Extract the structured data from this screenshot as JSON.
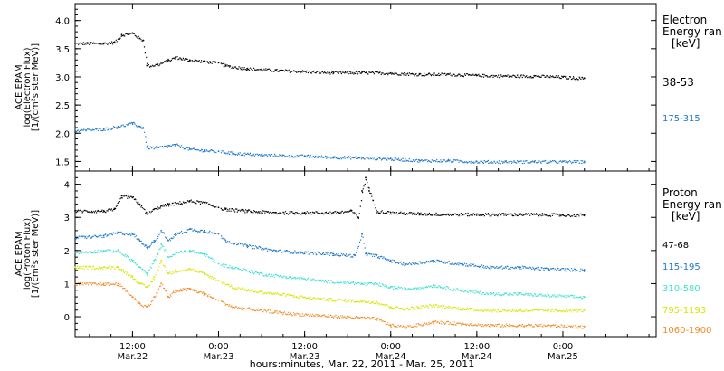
{
  "xaxis": {
    "caption": "hours:minutes, Mar. 22, 2011 - Mar. 25, 2011",
    "ticks": [
      {
        "hours": 12,
        "time": "12:00",
        "date": "Mar.22"
      },
      {
        "hours": 24,
        "time": "0:00",
        "date": "Mar.23"
      },
      {
        "hours": 36,
        "time": "12:00",
        "date": "Mar.23"
      },
      {
        "hours": 48,
        "time": "0:00",
        "date": "Mar.24"
      },
      {
        "hours": 60,
        "time": "12:00",
        "date": "Mar.24"
      },
      {
        "hours": 72,
        "time": "0:00",
        "date": "Mar.25"
      }
    ]
  },
  "chart_data": [
    {
      "type": "scatter",
      "ylabel": [
        "ACE EPAM",
        "log(Electron Flux)",
        "[1/(cm²s ster MeV)]"
      ],
      "ylim": [
        1.33,
        4.3
      ],
      "yticks": [
        "1.5",
        "2.0",
        "2.5",
        "3.0",
        "3.5",
        "4.0"
      ],
      "legend_title": [
        "Electron",
        "Energy ran",
        "[keV]"
      ],
      "x_hours_range": [
        4.0,
        85.0
      ],
      "series": [
        {
          "name": "38-53",
          "color": "#000000",
          "points": [
            [
              4.0,
              3.6
            ],
            [
              8.0,
              3.6
            ],
            [
              9.5,
              3.62
            ],
            [
              10.5,
              3.75
            ],
            [
              12.0,
              3.78
            ],
            [
              13.0,
              3.68
            ],
            [
              13.5,
              3.65
            ],
            [
              14.0,
              3.2
            ],
            [
              15.5,
              3.22
            ],
            [
              17.0,
              3.3
            ],
            [
              18.0,
              3.35
            ],
            [
              20.0,
              3.3
            ],
            [
              22.0,
              3.28
            ],
            [
              24.0,
              3.25
            ],
            [
              25.0,
              3.2
            ],
            [
              28.0,
              3.15
            ],
            [
              32.0,
              3.12
            ],
            [
              36.0,
              3.1
            ],
            [
              40.0,
              3.08
            ],
            [
              44.0,
              3.08
            ],
            [
              48.0,
              3.07
            ],
            [
              52.0,
              3.05
            ],
            [
              56.0,
              3.05
            ],
            [
              60.0,
              3.03
            ],
            [
              64.0,
              3.02
            ],
            [
              68.0,
              3.02
            ],
            [
              72.0,
              3.0
            ],
            [
              75.0,
              2.98
            ]
          ]
        },
        {
          "name": "175-315",
          "color": "#1E78C8",
          "points": [
            [
              4.0,
              2.05
            ],
            [
              8.0,
              2.08
            ],
            [
              10.0,
              2.12
            ],
            [
              12.0,
              2.18
            ],
            [
              13.0,
              2.12
            ],
            [
              13.5,
              2.1
            ],
            [
              14.0,
              1.75
            ],
            [
              15.5,
              1.75
            ],
            [
              17.0,
              1.78
            ],
            [
              18.0,
              1.8
            ],
            [
              20.0,
              1.72
            ],
            [
              22.0,
              1.7
            ],
            [
              24.0,
              1.68
            ],
            [
              26.0,
              1.65
            ],
            [
              30.0,
              1.62
            ],
            [
              36.0,
              1.6
            ],
            [
              40.0,
              1.58
            ],
            [
              44.0,
              1.57
            ],
            [
              48.0,
              1.55
            ],
            [
              52.0,
              1.52
            ],
            [
              56.0,
              1.52
            ],
            [
              60.0,
              1.5
            ],
            [
              64.0,
              1.5
            ],
            [
              68.0,
              1.5
            ],
            [
              72.0,
              1.5
            ],
            [
              75.0,
              1.5
            ]
          ]
        }
      ]
    },
    {
      "type": "scatter",
      "ylabel": [
        "ACE EPAM",
        "log(Proton Flux)",
        "[1/(cm²s ster MeV)]"
      ],
      "ylim": [
        -0.6,
        4.4
      ],
      "yticks": [
        "0",
        "1",
        "2",
        "3",
        "4"
      ],
      "legend_title": [
        "Proton",
        "Energy ran",
        "[keV]"
      ],
      "x_hours_range": [
        4.0,
        85.0
      ],
      "series": [
        {
          "name": "47-68",
          "color": "#000000",
          "points": [
            [
              4.0,
              3.2
            ],
            [
              8.0,
              3.2
            ],
            [
              9.5,
              3.25
            ],
            [
              10.5,
              3.65
            ],
            [
              12.0,
              3.6
            ],
            [
              13.0,
              3.4
            ],
            [
              14.0,
              3.1
            ],
            [
              15.0,
              3.25
            ],
            [
              16.0,
              3.35
            ],
            [
              17.0,
              3.4
            ],
            [
              20.0,
              3.5
            ],
            [
              22.0,
              3.45
            ],
            [
              24.0,
              3.3
            ],
            [
              25.0,
              3.25
            ],
            [
              28.0,
              3.2
            ],
            [
              32.0,
              3.15
            ],
            [
              36.0,
              3.15
            ],
            [
              40.0,
              3.15
            ],
            [
              42.5,
              3.2
            ],
            [
              43.5,
              3.0
            ],
            [
              44.0,
              3.8
            ],
            [
              44.5,
              4.2
            ],
            [
              45.0,
              3.8
            ],
            [
              46.0,
              3.2
            ],
            [
              48.0,
              3.15
            ],
            [
              52.0,
              3.12
            ],
            [
              56.0,
              3.1
            ],
            [
              60.0,
              3.1
            ],
            [
              64.0,
              3.1
            ],
            [
              68.0,
              3.1
            ],
            [
              72.0,
              3.08
            ],
            [
              75.0,
              3.08
            ]
          ]
        },
        {
          "name": "115-195",
          "color": "#1E78C8",
          "points": [
            [
              4.0,
              2.4
            ],
            [
              8.0,
              2.45
            ],
            [
              10.0,
              2.55
            ],
            [
              12.0,
              2.5
            ],
            [
              13.0,
              2.3
            ],
            [
              14.0,
              2.1
            ],
            [
              15.0,
              2.3
            ],
            [
              16.0,
              2.6
            ],
            [
              17.0,
              2.3
            ],
            [
              18.0,
              2.5
            ],
            [
              20.0,
              2.65
            ],
            [
              22.0,
              2.6
            ],
            [
              24.0,
              2.5
            ],
            [
              25.0,
              2.3
            ],
            [
              28.0,
              2.15
            ],
            [
              32.0,
              2.0
            ],
            [
              36.0,
              1.95
            ],
            [
              40.0,
              1.9
            ],
            [
              43.0,
              1.85
            ],
            [
              44.0,
              2.5
            ],
            [
              44.5,
              1.9
            ],
            [
              46.0,
              1.85
            ],
            [
              48.0,
              1.7
            ],
            [
              50.0,
              1.6
            ],
            [
              54.0,
              1.7
            ],
            [
              58.0,
              1.6
            ],
            [
              62.0,
              1.5
            ],
            [
              66.0,
              1.5
            ],
            [
              70.0,
              1.45
            ],
            [
              75.0,
              1.42
            ]
          ]
        },
        {
          "name": "310-580",
          "color": "#40E0D0",
          "points": [
            [
              4.0,
              1.95
            ],
            [
              8.0,
              2.0
            ],
            [
              10.0,
              2.0
            ],
            [
              12.0,
              1.7
            ],
            [
              13.0,
              1.5
            ],
            [
              14.0,
              1.3
            ],
            [
              15.0,
              1.7
            ],
            [
              16.0,
              2.2
            ],
            [
              17.0,
              1.8
            ],
            [
              18.0,
              1.95
            ],
            [
              20.0,
              2.0
            ],
            [
              22.0,
              1.9
            ],
            [
              24.0,
              1.6
            ],
            [
              26.0,
              1.5
            ],
            [
              30.0,
              1.3
            ],
            [
              34.0,
              1.2
            ],
            [
              38.0,
              1.1
            ],
            [
              42.0,
              1.05
            ],
            [
              44.0,
              1.0
            ],
            [
              46.0,
              1.0
            ],
            [
              48.0,
              0.9
            ],
            [
              50.0,
              0.85
            ],
            [
              54.0,
              0.95
            ],
            [
              58.0,
              0.8
            ],
            [
              62.0,
              0.7
            ],
            [
              66.0,
              0.7
            ],
            [
              70.0,
              0.65
            ],
            [
              75.0,
              0.6
            ]
          ]
        },
        {
          "name": "795-1193",
          "color": "#D7E600",
          "points": [
            [
              4.0,
              1.5
            ],
            [
              8.0,
              1.5
            ],
            [
              10.0,
              1.5
            ],
            [
              12.0,
              1.2
            ],
            [
              13.0,
              1.0
            ],
            [
              14.0,
              0.9
            ],
            [
              15.0,
              1.2
            ],
            [
              16.0,
              1.7
            ],
            [
              17.0,
              1.3
            ],
            [
              18.0,
              1.4
            ],
            [
              20.0,
              1.45
            ],
            [
              22.0,
              1.3
            ],
            [
              24.0,
              1.1
            ],
            [
              26.0,
              0.9
            ],
            [
              30.0,
              0.75
            ],
            [
              34.0,
              0.65
            ],
            [
              38.0,
              0.55
            ],
            [
              42.0,
              0.5
            ],
            [
              46.0,
              0.45
            ],
            [
              48.0,
              0.3
            ],
            [
              50.0,
              0.25
            ],
            [
              54.0,
              0.35
            ],
            [
              58.0,
              0.25
            ],
            [
              62.0,
              0.2
            ],
            [
              66.0,
              0.2
            ],
            [
              70.0,
              0.2
            ],
            [
              75.0,
              0.2
            ]
          ]
        },
        {
          "name": "1060-1900",
          "color": "#F08C28",
          "points": [
            [
              4.0,
              1.0
            ],
            [
              8.0,
              1.0
            ],
            [
              10.0,
              1.0
            ],
            [
              12.0,
              0.6
            ],
            [
              13.0,
              0.4
            ],
            [
              14.0,
              0.3
            ],
            [
              15.0,
              0.6
            ],
            [
              16.0,
              1.0
            ],
            [
              17.0,
              0.6
            ],
            [
              18.0,
              0.8
            ],
            [
              20.0,
              0.85
            ],
            [
              22.0,
              0.7
            ],
            [
              24.0,
              0.5
            ],
            [
              26.0,
              0.3
            ],
            [
              30.0,
              0.2
            ],
            [
              34.0,
              0.1
            ],
            [
              38.0,
              0.05
            ],
            [
              42.0,
              0.0
            ],
            [
              46.0,
              -0.05
            ],
            [
              48.0,
              -0.25
            ],
            [
              50.0,
              -0.3
            ],
            [
              54.0,
              -0.15
            ],
            [
              58.0,
              -0.2
            ],
            [
              62.0,
              -0.25
            ],
            [
              66.0,
              -0.25
            ],
            [
              70.0,
              -0.25
            ],
            [
              75.0,
              -0.3
            ]
          ]
        }
      ]
    }
  ]
}
